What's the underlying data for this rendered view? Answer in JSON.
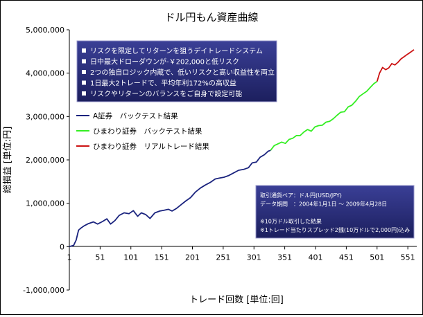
{
  "chart_data": {
    "type": "line",
    "title": "ドル円もん資産曲線",
    "xlabel": "トレード回数 [単位:回]",
    "ylabel": "総損益 [単位:円]",
    "xlim": [
      1,
      561
    ],
    "ylim": [
      -1000000,
      5000000
    ],
    "x_ticks": [
      "1",
      "51",
      "101",
      "151",
      "201",
      "251",
      "301",
      "351",
      "401",
      "451",
      "501",
      "551"
    ],
    "y_ticks": [
      "5,000,000",
      "4,000,000",
      "3,000,000",
      "2,000,000",
      "1,000,000",
      "0",
      "-1,000,000"
    ],
    "grid": false,
    "legend_position": "left",
    "series": [
      {
        "name": "A証券　バックテスト結果",
        "color": "#1a237e",
        "points": [
          [
            1,
            0
          ],
          [
            8,
            30000
          ],
          [
            12,
            150000
          ],
          [
            16,
            380000
          ],
          [
            20,
            430000
          ],
          [
            25,
            480000
          ],
          [
            32,
            530000
          ],
          [
            40,
            570000
          ],
          [
            47,
            520000
          ],
          [
            55,
            580000
          ],
          [
            62,
            640000
          ],
          [
            68,
            520000
          ],
          [
            75,
            600000
          ],
          [
            82,
            720000
          ],
          [
            90,
            780000
          ],
          [
            98,
            760000
          ],
          [
            105,
            830000
          ],
          [
            112,
            700000
          ],
          [
            118,
            780000
          ],
          [
            125,
            740000
          ],
          [
            132,
            650000
          ],
          [
            140,
            780000
          ],
          [
            148,
            820000
          ],
          [
            155,
            840000
          ],
          [
            162,
            860000
          ],
          [
            168,
            820000
          ],
          [
            175,
            880000
          ],
          [
            182,
            960000
          ],
          [
            190,
            1050000
          ],
          [
            198,
            1130000
          ],
          [
            206,
            1260000
          ],
          [
            214,
            1350000
          ],
          [
            222,
            1420000
          ],
          [
            230,
            1480000
          ],
          [
            238,
            1560000
          ],
          [
            245,
            1580000
          ],
          [
            252,
            1600000
          ],
          [
            260,
            1640000
          ],
          [
            268,
            1700000
          ],
          [
            276,
            1760000
          ],
          [
            284,
            1780000
          ],
          [
            292,
            1820000
          ],
          [
            298,
            1930000
          ],
          [
            305,
            1950000
          ],
          [
            311,
            2060000
          ],
          [
            318,
            2120000
          ],
          [
            324,
            2200000
          ],
          [
            328,
            2220000
          ]
        ]
      },
      {
        "name": "ひまわり証券　バックテスト結果",
        "color": "#33ee22",
        "points": [
          [
            328,
            2220000
          ],
          [
            334,
            2330000
          ],
          [
            340,
            2370000
          ],
          [
            346,
            2410000
          ],
          [
            352,
            2380000
          ],
          [
            358,
            2470000
          ],
          [
            364,
            2500000
          ],
          [
            370,
            2560000
          ],
          [
            376,
            2560000
          ],
          [
            382,
            2640000
          ],
          [
            388,
            2700000
          ],
          [
            394,
            2660000
          ],
          [
            400,
            2760000
          ],
          [
            406,
            2790000
          ],
          [
            412,
            2800000
          ],
          [
            418,
            2870000
          ],
          [
            424,
            2890000
          ],
          [
            430,
            2950000
          ],
          [
            436,
            3030000
          ],
          [
            442,
            3100000
          ],
          [
            448,
            3110000
          ],
          [
            454,
            3220000
          ],
          [
            460,
            3260000
          ],
          [
            466,
            3350000
          ],
          [
            472,
            3460000
          ],
          [
            478,
            3520000
          ],
          [
            484,
            3580000
          ],
          [
            490,
            3670000
          ],
          [
            496,
            3760000
          ],
          [
            501,
            3810000
          ]
        ]
      },
      {
        "name": "ひまわり証券　リアルトレード結果",
        "color": "#cc1111",
        "points": [
          [
            501,
            3810000
          ],
          [
            505,
            4000000
          ],
          [
            510,
            4130000
          ],
          [
            515,
            4080000
          ],
          [
            520,
            4120000
          ],
          [
            525,
            4220000
          ],
          [
            530,
            4190000
          ],
          [
            535,
            4250000
          ],
          [
            540,
            4330000
          ],
          [
            545,
            4380000
          ],
          [
            550,
            4430000
          ],
          [
            555,
            4480000
          ],
          [
            561,
            4540000
          ]
        ]
      }
    ],
    "annotations": {
      "features": [
        "リスクを限定してリターンを狙うデイトレードシステム",
        "日中最大ドローダウンが-￥202,000と低リスク",
        "2つの独自ロジック内蔵で、低いリスクと高い収益性を両立",
        "1日最大2トレードで、平均年利172%の高収益",
        "リスクやリターンのバランスをご自身で設定可能"
      ],
      "info": [
        "取引通貨ペア：ドル円(USD/JPY)",
        "データ期間　：2004年1月1日 ～ 2009年4月28日",
        "",
        "※10万ドル取引した結果",
        "※1トレード当たりスプレッド2銭(10万ドルで2,000円)込み"
      ]
    },
    "feature_box_color": "#23266e",
    "info_box_color": "#23266e"
  }
}
